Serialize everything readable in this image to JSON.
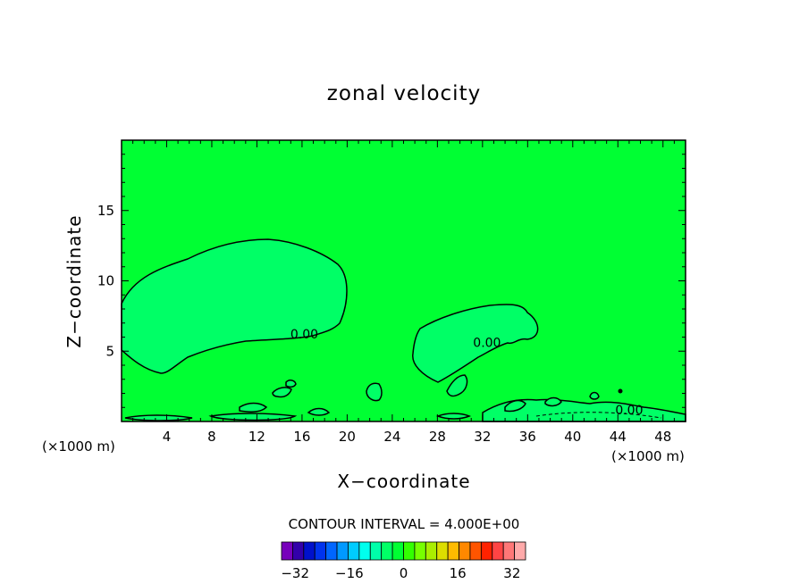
{
  "chart_data": {
    "type": "heatmap",
    "title": "zonal velocity",
    "xlabel": "X−coordinate",
    "ylabel": "Z−coordinate",
    "x_unit_left": "(×1000 m)",
    "x_unit_right": "(×1000 m)",
    "xlim": [
      0,
      50
    ],
    "ylim": [
      0,
      20
    ],
    "x_ticks": [
      4,
      8,
      12,
      16,
      20,
      24,
      28,
      32,
      36,
      40,
      44,
      48
    ],
    "y_ticks": [
      5,
      10,
      15
    ],
    "contour_interval_label": "CONTOUR INTERVAL = 4.000E+00",
    "contour_labels": [
      {
        "text": "0.00",
        "x": 16.2,
        "y": 5.9
      },
      {
        "text": "0.00",
        "x": 32.4,
        "y": 5.3
      },
      {
        "text": "0.00",
        "x": 45.0,
        "y": 0.5
      }
    ],
    "colorbar": {
      "min": -36,
      "max": 36,
      "step": 4,
      "tick_labels": [
        "−32",
        "−16",
        "0",
        "16",
        "32"
      ],
      "tick_values": [
        -32,
        -16,
        0,
        16,
        32
      ],
      "colors": [
        "#7700bb",
        "#3300aa",
        "#0011cc",
        "#0033ee",
        "#0066ff",
        "#0099ff",
        "#00ccff",
        "#00ffee",
        "#00ffaa",
        "#00ff66",
        "#00ff33",
        "#33ff00",
        "#77ff00",
        "#aaee00",
        "#dddd00",
        "#ffbb00",
        "#ff8800",
        "#ff5500",
        "#ff2200",
        "#ff4444",
        "#ff7777",
        "#ffaaaa"
      ]
    },
    "field_color": "#00ff33",
    "negative_color": "#00ff66",
    "grid": false
  }
}
